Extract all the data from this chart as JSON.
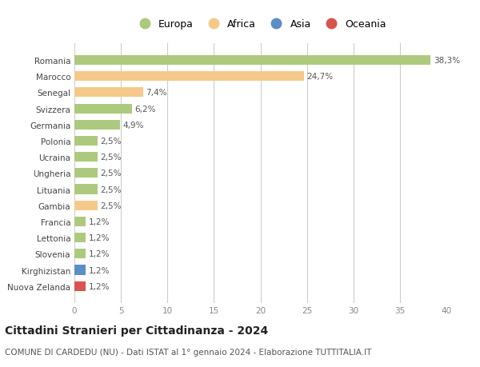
{
  "countries": [
    "Romania",
    "Marocco",
    "Senegal",
    "Svizzera",
    "Germania",
    "Polonia",
    "Ucraina",
    "Ungheria",
    "Lituania",
    "Gambia",
    "Francia",
    "Lettonia",
    "Slovenia",
    "Kirghizistan",
    "Nuova Zelanda"
  ],
  "values": [
    38.3,
    24.7,
    7.4,
    6.2,
    4.9,
    2.5,
    2.5,
    2.5,
    2.5,
    2.5,
    1.2,
    1.2,
    1.2,
    1.2,
    1.2
  ],
  "labels": [
    "38,3%",
    "24,7%",
    "7,4%",
    "6,2%",
    "4,9%",
    "2,5%",
    "2,5%",
    "2,5%",
    "2,5%",
    "2,5%",
    "1,2%",
    "1,2%",
    "1,2%",
    "1,2%",
    "1,2%"
  ],
  "continents": [
    "Europa",
    "Africa",
    "Africa",
    "Europa",
    "Europa",
    "Europa",
    "Europa",
    "Europa",
    "Europa",
    "Africa",
    "Europa",
    "Europa",
    "Europa",
    "Asia",
    "Oceania"
  ],
  "colors": {
    "Europa": "#adc97e",
    "Africa": "#f5c98a",
    "Asia": "#5b8ec4",
    "Oceania": "#d9534f"
  },
  "xlim": [
    0,
    40
  ],
  "xticks": [
    0,
    5,
    10,
    15,
    20,
    25,
    30,
    35,
    40
  ],
  "title": "Cittadini Stranieri per Cittadinanza - 2024",
  "subtitle": "COMUNE DI CARDEDU (NU) - Dati ISTAT al 1° gennaio 2024 - Elaborazione TUTTITALIA.IT",
  "background_color": "#ffffff",
  "grid_color": "#cccccc",
  "bar_height": 0.6,
  "label_fontsize": 7.5,
  "tick_fontsize": 7.5,
  "title_fontsize": 10,
  "subtitle_fontsize": 7.5,
  "legend_entries": [
    "Europa",
    "Africa",
    "Asia",
    "Oceania"
  ]
}
